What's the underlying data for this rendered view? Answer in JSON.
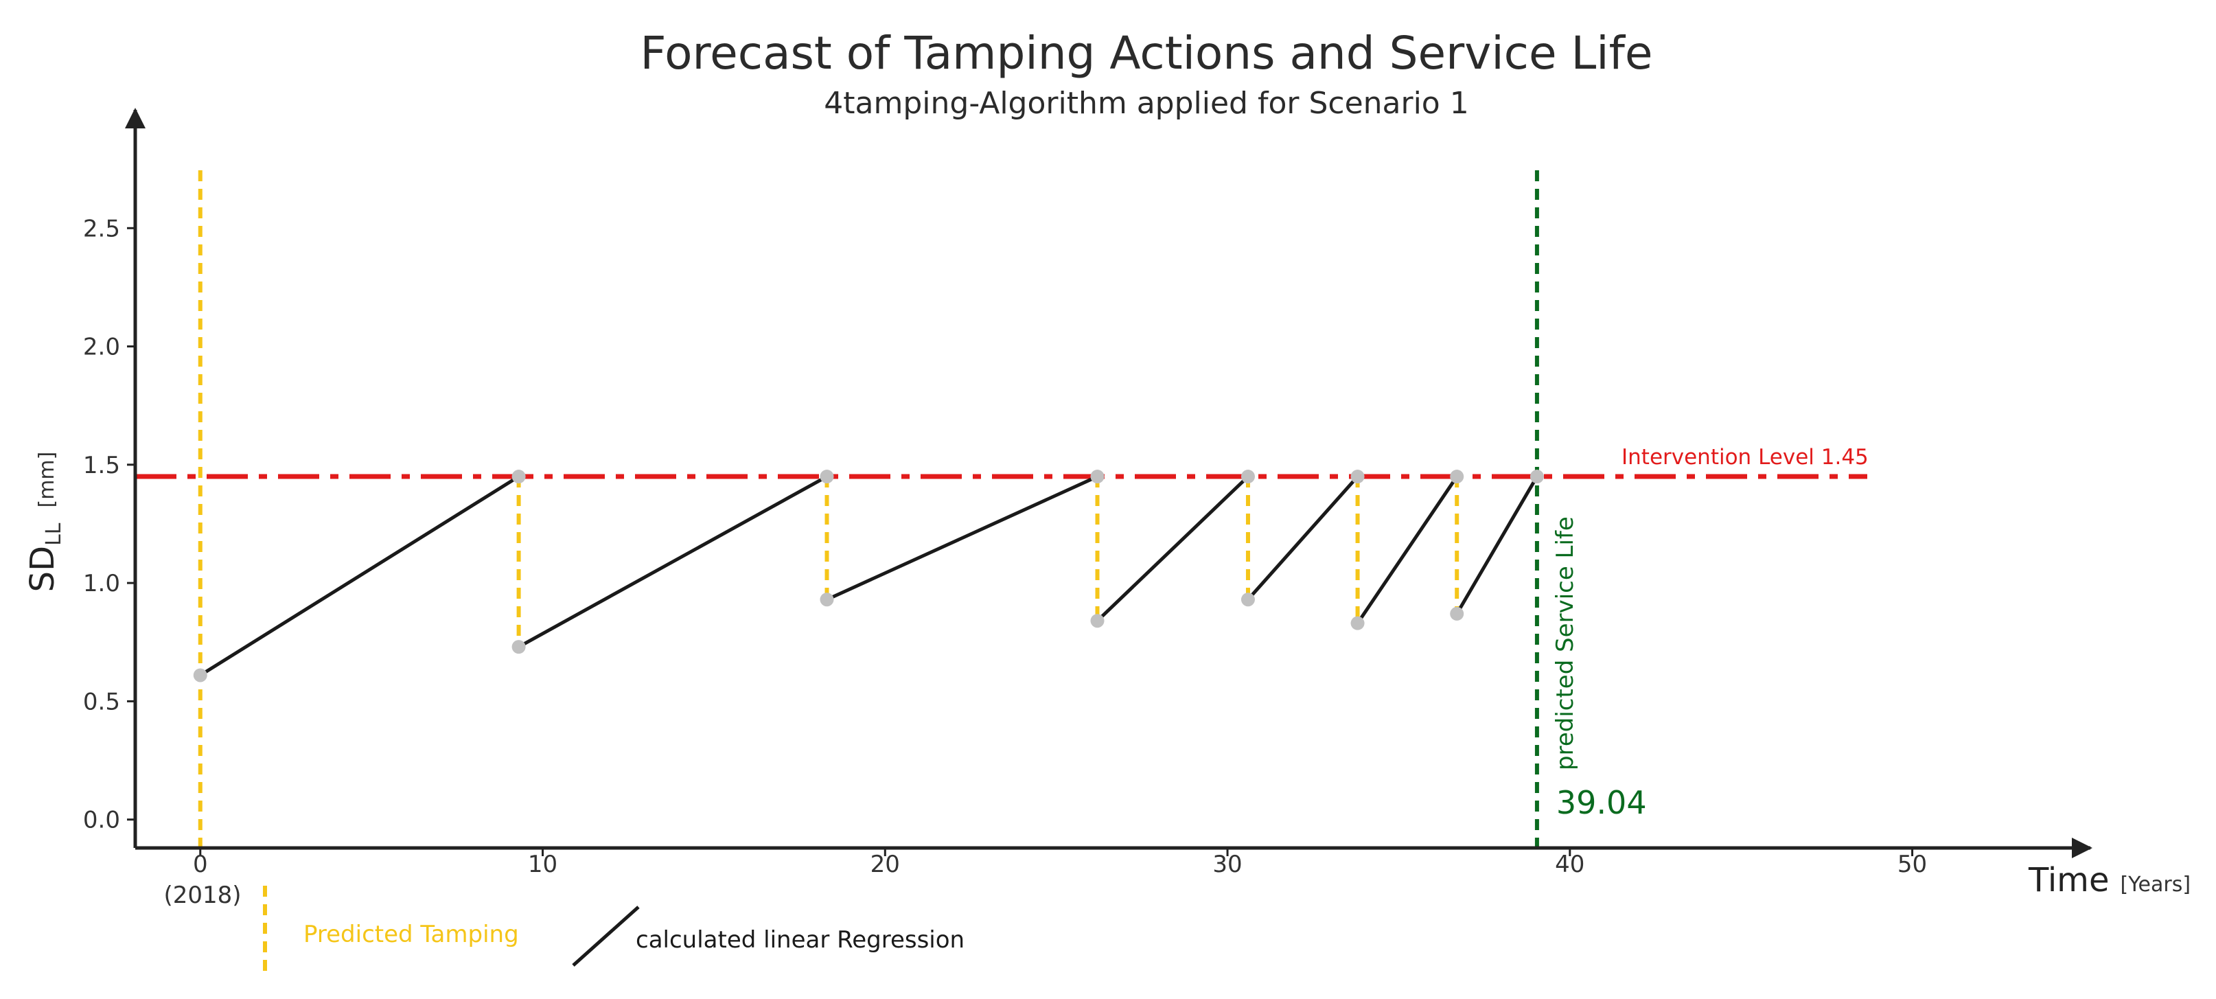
{
  "chart_data": {
    "type": "line",
    "title": "Forecast of Tamping Actions and Service Life",
    "subtitle": "4tamping-Algorithm applied for Scenario 1",
    "ylabel": {
      "main": "SD",
      "sub": "LL",
      "unit": "[mm]"
    },
    "xlabel": {
      "main": "Time",
      "unit": "[Years]"
    },
    "xlim": [
      -1.9,
      54.5
    ],
    "ylim": [
      -0.12,
      3.0
    ],
    "x_ticks": [
      0,
      10,
      20,
      30,
      40,
      50
    ],
    "x_tick_labels": [
      "0",
      "10",
      "20",
      "30",
      "40",
      "50"
    ],
    "x_tick_sublabel": "(2018)",
    "y_ticks": [
      0.0,
      0.5,
      1.0,
      1.5,
      2.0,
      2.5
    ],
    "y_tick_labels": [
      "0.0",
      "0.5",
      "1.0",
      "1.5",
      "2.0",
      "2.5"
    ],
    "intervention_level": {
      "value": 1.45,
      "label": "Intervention Level 1.45"
    },
    "service_life": {
      "x": 39.04,
      "label": "predicted Service Life",
      "value_label": "39.04"
    },
    "tamping_times": [
      0,
      9.3,
      18.3,
      26.2,
      30.6,
      33.8,
      36.7
    ],
    "regression_segments": [
      {
        "x": [
          0,
          9.3
        ],
        "y": [
          0.61,
          1.45
        ]
      },
      {
        "x": [
          9.3,
          18.3
        ],
        "y": [
          0.73,
          1.45
        ]
      },
      {
        "x": [
          18.3,
          26.2
        ],
        "y": [
          0.93,
          1.45
        ]
      },
      {
        "x": [
          26.2,
          30.6
        ],
        "y": [
          0.84,
          1.45
        ]
      },
      {
        "x": [
          30.6,
          33.8
        ],
        "y": [
          0.93,
          1.45
        ]
      },
      {
        "x": [
          33.8,
          36.7
        ],
        "y": [
          0.83,
          1.45
        ]
      },
      {
        "x": [
          36.7,
          39.04
        ],
        "y": [
          0.87,
          1.45
        ]
      }
    ],
    "tamping_drops": [
      {
        "x": 9.3,
        "from": 1.45,
        "to": 0.73
      },
      {
        "x": 18.3,
        "from": 1.45,
        "to": 0.93
      },
      {
        "x": 26.2,
        "from": 1.45,
        "to": 0.84
      },
      {
        "x": 30.6,
        "from": 1.45,
        "to": 0.93
      },
      {
        "x": 33.8,
        "from": 1.45,
        "to": 0.83
      },
      {
        "x": 36.7,
        "from": 1.45,
        "to": 0.87
      }
    ],
    "points": [
      {
        "x": 0,
        "y": 0.61
      },
      {
        "x": 9.3,
        "y": 1.45
      },
      {
        "x": 9.3,
        "y": 0.73
      },
      {
        "x": 18.3,
        "y": 1.45
      },
      {
        "x": 18.3,
        "y": 0.93
      },
      {
        "x": 26.2,
        "y": 1.45
      },
      {
        "x": 26.2,
        "y": 0.84
      },
      {
        "x": 30.6,
        "y": 1.45
      },
      {
        "x": 30.6,
        "y": 0.93
      },
      {
        "x": 33.8,
        "y": 1.45
      },
      {
        "x": 33.8,
        "y": 0.83
      },
      {
        "x": 36.7,
        "y": 1.45
      },
      {
        "x": 36.7,
        "y": 0.87
      },
      {
        "x": 39.04,
        "y": 1.45
      }
    ],
    "legend": [
      {
        "label": "Predicted Tamping",
        "style": "dashed-yellow"
      },
      {
        "label": "calculated linear Regression",
        "style": "solid-black"
      }
    ],
    "grid": false,
    "legend_position": "bottom-left",
    "colors": {
      "tamping": "#f5c518",
      "regression": "#1a1a1a",
      "intervention": "#e21b1b",
      "service_life": "#0a6b1f",
      "points": "#c0c0c0",
      "axis": "#222222"
    }
  }
}
